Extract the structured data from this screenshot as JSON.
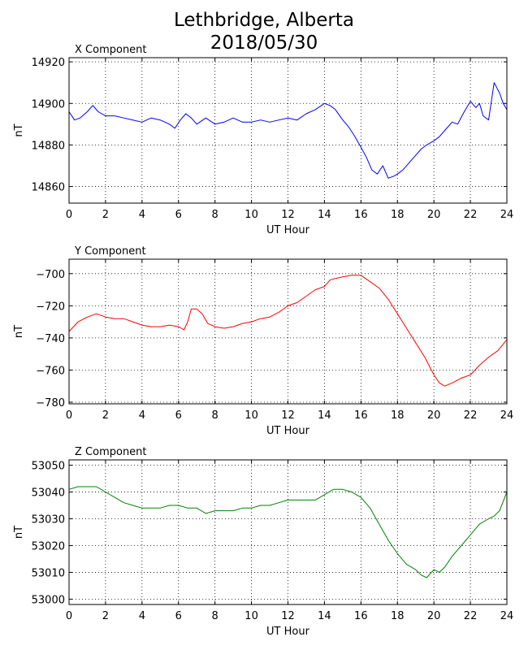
{
  "title": "Lethbridge, Alberta",
  "date": "2018/05/30",
  "chart_data": [
    {
      "type": "line",
      "title": "X Component",
      "xlabel": "UT Hour",
      "ylabel": "nT",
      "color": "#0000ff",
      "xlim": [
        0,
        24
      ],
      "ylim": [
        14852,
        14922
      ],
      "xticks": [
        0,
        2,
        4,
        6,
        8,
        10,
        12,
        14,
        16,
        18,
        20,
        22,
        24
      ],
      "yticks": [
        14860,
        14880,
        14900,
        14920
      ],
      "grid": true,
      "series": [
        {
          "x": [
            0,
            0.3,
            0.6,
            1.0,
            1.3,
            1.6,
            2.0,
            2.5,
            3.0,
            3.5,
            4.0,
            4.5,
            5.0,
            5.5,
            5.8,
            6.1,
            6.4,
            6.7,
            7.0,
            7.5,
            8.0,
            8.5,
            9.0,
            9.5,
            10.0,
            10.5,
            11.0,
            11.5,
            12.0,
            12.5,
            13.0,
            13.5,
            14.0,
            14.3,
            14.6,
            15.0,
            15.3,
            15.6,
            16.0,
            16.3,
            16.6,
            16.9,
            17.2,
            17.5,
            17.8,
            18.0,
            18.3,
            18.6,
            19.0,
            19.3,
            19.6,
            20.0,
            20.3,
            20.6,
            21.0,
            21.3,
            21.6,
            22.0,
            22.3,
            22.5,
            22.7,
            23.0,
            23.3,
            23.6,
            23.8,
            24.0
          ],
          "y": [
            14896,
            14892,
            14893,
            14896,
            14899,
            14896,
            14894,
            14894,
            14893,
            14892,
            14891,
            14893,
            14892,
            14890,
            14888,
            14892,
            14895,
            14893,
            14890,
            14893,
            14890,
            14891,
            14893,
            14891,
            14891,
            14892,
            14891,
            14892,
            14893,
            14892,
            14895,
            14897,
            14900,
            14899,
            14897,
            14892,
            14889,
            14885,
            14879,
            14874,
            14868,
            14866,
            14870,
            14864,
            14865,
            14866,
            14868,
            14871,
            14875,
            14878,
            14880,
            14882,
            14884,
            14887,
            14891,
            14890,
            14895,
            14901,
            14898,
            14900,
            14894,
            14892,
            14910,
            14905,
            14900,
            14897
          ]
        }
      ]
    },
    {
      "type": "line",
      "title": "Y Component",
      "xlabel": "UT Hour",
      "ylabel": "nT",
      "color": "#ff0000",
      "xlim": [
        0,
        24
      ],
      "ylim": [
        -781,
        -691
      ],
      "xticks": [
        0,
        2,
        4,
        6,
        8,
        10,
        12,
        14,
        16,
        18,
        20,
        22,
        24
      ],
      "yticks": [
        -700,
        -720,
        -740,
        -760,
        -780
      ],
      "grid": true,
      "series": [
        {
          "x": [
            0,
            0.5,
            1.0,
            1.5,
            2.0,
            2.5,
            3.0,
            3.5,
            4.0,
            4.5,
            5.0,
            5.5,
            6.0,
            6.3,
            6.5,
            6.7,
            7.0,
            7.3,
            7.6,
            8.0,
            8.5,
            9.0,
            9.5,
            10.0,
            10.5,
            11.0,
            11.5,
            12.0,
            12.5,
            13.0,
            13.5,
            14.0,
            14.3,
            14.6,
            15.0,
            15.5,
            16.0,
            16.5,
            17.0,
            17.5,
            18.0,
            18.5,
            19.0,
            19.5,
            20.0,
            20.3,
            20.6,
            21.0,
            21.5,
            22.0,
            22.5,
            23.0,
            23.5,
            24.0
          ],
          "y": [
            -736,
            -730,
            -727,
            -725,
            -727,
            -728,
            -728,
            -730,
            -732,
            -733,
            -733,
            -732,
            -733,
            -735,
            -730,
            -722,
            -722,
            -725,
            -731,
            -733,
            -734,
            -733,
            -731,
            -730,
            -728,
            -727,
            -724,
            -720,
            -718,
            -714,
            -710,
            -708,
            -704,
            -703,
            -702,
            -701,
            -701,
            -705,
            -709,
            -716,
            -725,
            -734,
            -743,
            -752,
            -763,
            -768,
            -770,
            -768,
            -765,
            -763,
            -757,
            -752,
            -748,
            -741
          ]
        }
      ]
    },
    {
      "type": "line",
      "title": "Z Component",
      "xlabel": "UT Hour",
      "ylabel": "nT",
      "color": "#008000",
      "xlim": [
        0,
        24
      ],
      "ylim": [
        52998,
        53052
      ],
      "xticks": [
        0,
        2,
        4,
        6,
        8,
        10,
        12,
        14,
        16,
        18,
        20,
        22,
        24
      ],
      "yticks": [
        53000,
        53010,
        53020,
        53030,
        53040,
        53050
      ],
      "grid": true,
      "series": [
        {
          "x": [
            0,
            0.5,
            1.0,
            1.5,
            2.0,
            2.5,
            3.0,
            3.5,
            4.0,
            4.5,
            5.0,
            5.5,
            6.0,
            6.5,
            7.0,
            7.5,
            8.0,
            8.5,
            9.0,
            9.5,
            10.0,
            10.5,
            11.0,
            11.5,
            12.0,
            12.5,
            13.0,
            13.5,
            14.0,
            14.5,
            15.0,
            15.5,
            16.0,
            16.5,
            17.0,
            17.5,
            18.0,
            18.5,
            19.0,
            19.3,
            19.6,
            20.0,
            20.3,
            20.6,
            21.0,
            21.5,
            22.0,
            22.5,
            23.0,
            23.3,
            23.6,
            24.0
          ],
          "y": [
            53041,
            53042,
            53042,
            53042,
            53040,
            53038,
            53036,
            53035,
            53034,
            53034,
            53034,
            53035,
            53035,
            53034,
            53034,
            53032,
            53033,
            53033,
            53033,
            53034,
            53034,
            53035,
            53035,
            53036,
            53037,
            53037,
            53037,
            53037,
            53039,
            53041,
            53041,
            53040,
            53038,
            53034,
            53028,
            53022,
            53017,
            53013,
            53011,
            53009,
            53008,
            53011,
            53010,
            53012,
            53016,
            53020,
            53024,
            53028,
            53030,
            53031,
            53033,
            53040
          ]
        }
      ]
    }
  ]
}
